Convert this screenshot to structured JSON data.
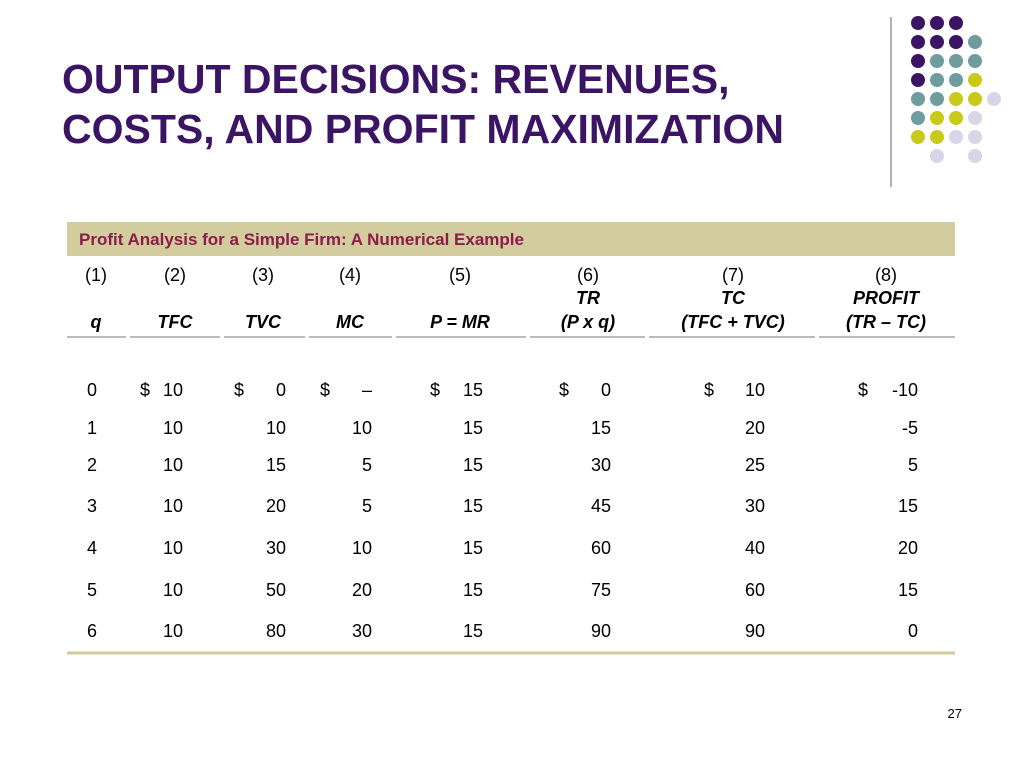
{
  "title": {
    "lines": [
      "OUTPUT DECISIONS: REVENUES,",
      "COSTS, AND PROFIT MAXIMIZATION"
    ]
  },
  "table": {
    "caption": "Profit Analysis for a Simple Firm: A Numerical Example",
    "headers": [
      {
        "number": "(1)",
        "name": "q"
      },
      {
        "number": "(2)",
        "name": "TFC"
      },
      {
        "number": "(3)",
        "name": "TVC"
      },
      {
        "number": "(4)",
        "name": "MC"
      },
      {
        "number": "(5)",
        "name": "P = MR"
      },
      {
        "number": "(6)",
        "name": "TR",
        "formula": "(P x q)"
      },
      {
        "number": "(7)",
        "name": "TC",
        "formula": "(TFC + TVC)"
      },
      {
        "number": "(8)",
        "name": "PROFIT",
        "formula": "(TR – TC)"
      }
    ],
    "rows": [
      [
        "0",
        {
          "symbol": "$",
          "value": "10"
        },
        {
          "symbol": "$",
          "value": "0"
        },
        {
          "symbol": "$",
          "value": "–"
        },
        {
          "symbol": "$",
          "value": "15"
        },
        {
          "symbol": "$",
          "value": "0"
        },
        {
          "symbol": "$",
          "value": "10"
        },
        {
          "symbol": "$",
          "value": "-10"
        }
      ],
      [
        "1",
        "10",
        "10",
        "10",
        "15",
        "15",
        "20",
        "-5"
      ],
      [
        "2",
        "10",
        "15",
        "5",
        "15",
        "30",
        "25",
        "5"
      ],
      [
        "3",
        "10",
        "20",
        "5",
        "15",
        "45",
        "30",
        "15"
      ],
      [
        "4",
        "10",
        "30",
        "10",
        "15",
        "60",
        "40",
        "20"
      ],
      [
        "5",
        "10",
        "50",
        "20",
        "15",
        "75",
        "60",
        "15"
      ],
      [
        "6",
        "10",
        "80",
        "30",
        "15",
        "90",
        "90",
        "0"
      ]
    ]
  },
  "page_number": "27"
}
